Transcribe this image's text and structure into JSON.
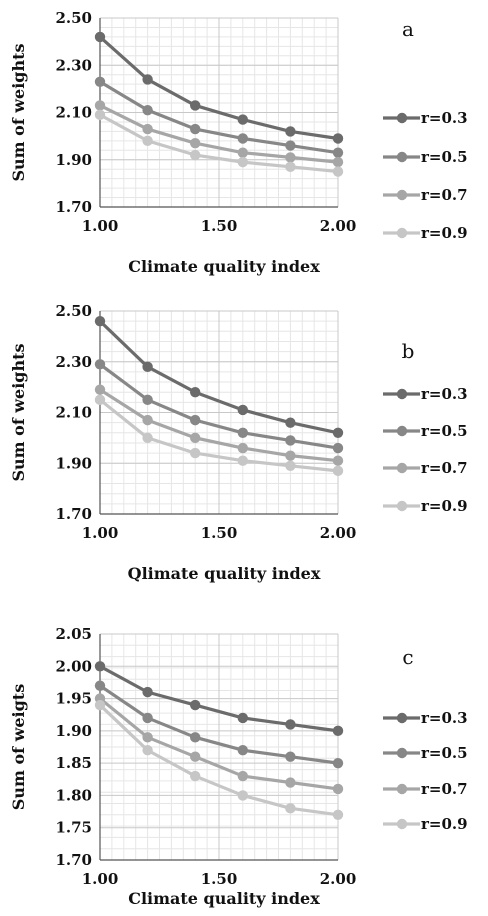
{
  "chart_data": [
    {
      "panel_label": "a",
      "type": "line",
      "xlabel": "Climate quality index",
      "ylabel": "Sum of weights",
      "x": [
        1.0,
        1.2,
        1.4,
        1.6,
        1.8,
        2.0
      ],
      "x_ticks": [
        "1.00",
        "1.50",
        "2.00"
      ],
      "y_ticks": [
        "1.70",
        "1.90",
        "2.10",
        "2.30",
        "2.50"
      ],
      "xlim": [
        1.0,
        2.0
      ],
      "ylim": [
        1.7,
        2.5
      ],
      "grid": true,
      "legend_position": "right",
      "series": [
        {
          "name": "r=0.3",
          "color": "#6b6b6b",
          "values": [
            2.42,
            2.24,
            2.13,
            2.07,
            2.02,
            1.99
          ]
        },
        {
          "name": "r=0.5",
          "color": "#878787",
          "values": [
            2.23,
            2.11,
            2.03,
            1.99,
            1.96,
            1.93
          ]
        },
        {
          "name": "r=0.7",
          "color": "#a6a6a6",
          "values": [
            2.13,
            2.03,
            1.97,
            1.93,
            1.91,
            1.89
          ]
        },
        {
          "name": "r=0.9",
          "color": "#c6c6c6",
          "values": [
            2.09,
            1.98,
            1.92,
            1.89,
            1.87,
            1.85
          ]
        }
      ]
    },
    {
      "panel_label": "b",
      "type": "line",
      "xlabel": "Qlimate quality index",
      "ylabel": "Sum of weights",
      "x": [
        1.0,
        1.2,
        1.4,
        1.6,
        1.8,
        2.0
      ],
      "x_ticks": [
        "1.00",
        "1.50",
        "2.00"
      ],
      "y_ticks": [
        "1.70",
        "1.90",
        "2.10",
        "2.30",
        "2.50"
      ],
      "xlim": [
        1.0,
        2.0
      ],
      "ylim": [
        1.7,
        2.5
      ],
      "grid": true,
      "legend_position": "right",
      "series": [
        {
          "name": "r=0.3",
          "color": "#6b6b6b",
          "values": [
            2.46,
            2.28,
            2.18,
            2.11,
            2.06,
            2.02
          ]
        },
        {
          "name": "r=0.5",
          "color": "#878787",
          "values": [
            2.29,
            2.15,
            2.07,
            2.02,
            1.99,
            1.96
          ]
        },
        {
          "name": "r=0.7",
          "color": "#a6a6a6",
          "values": [
            2.19,
            2.07,
            2.0,
            1.96,
            1.93,
            1.91
          ]
        },
        {
          "name": "r=0.9",
          "color": "#c6c6c6",
          "values": [
            2.15,
            2.0,
            1.94,
            1.91,
            1.89,
            1.87
          ]
        }
      ]
    },
    {
      "panel_label": "c",
      "type": "line",
      "xlabel": "Climate quality index",
      "ylabel": "Sum of weigts",
      "x": [
        1.0,
        1.2,
        1.4,
        1.6,
        1.8,
        2.0
      ],
      "x_ticks": [
        "1.00",
        "1.50",
        "2.00"
      ],
      "y_ticks": [
        "1.70",
        "1.75",
        "1.80",
        "1.85",
        "1.90",
        "1.95",
        "2.00",
        "2.05"
      ],
      "xlim": [
        1.0,
        2.0
      ],
      "ylim": [
        1.7,
        2.05
      ],
      "grid": true,
      "legend_position": "right",
      "series": [
        {
          "name": "r=0.3",
          "color": "#6b6b6b",
          "values": [
            2.0,
            1.96,
            1.94,
            1.92,
            1.91,
            1.9
          ]
        },
        {
          "name": "r=0.5",
          "color": "#878787",
          "values": [
            1.97,
            1.92,
            1.89,
            1.87,
            1.86,
            1.85
          ]
        },
        {
          "name": "r=0.7",
          "color": "#a6a6a6",
          "values": [
            1.95,
            1.89,
            1.86,
            1.83,
            1.82,
            1.81
          ]
        },
        {
          "name": "r=0.9",
          "color": "#c6c6c6",
          "values": [
            1.94,
            1.87,
            1.83,
            1.8,
            1.78,
            1.77
          ]
        }
      ]
    }
  ]
}
